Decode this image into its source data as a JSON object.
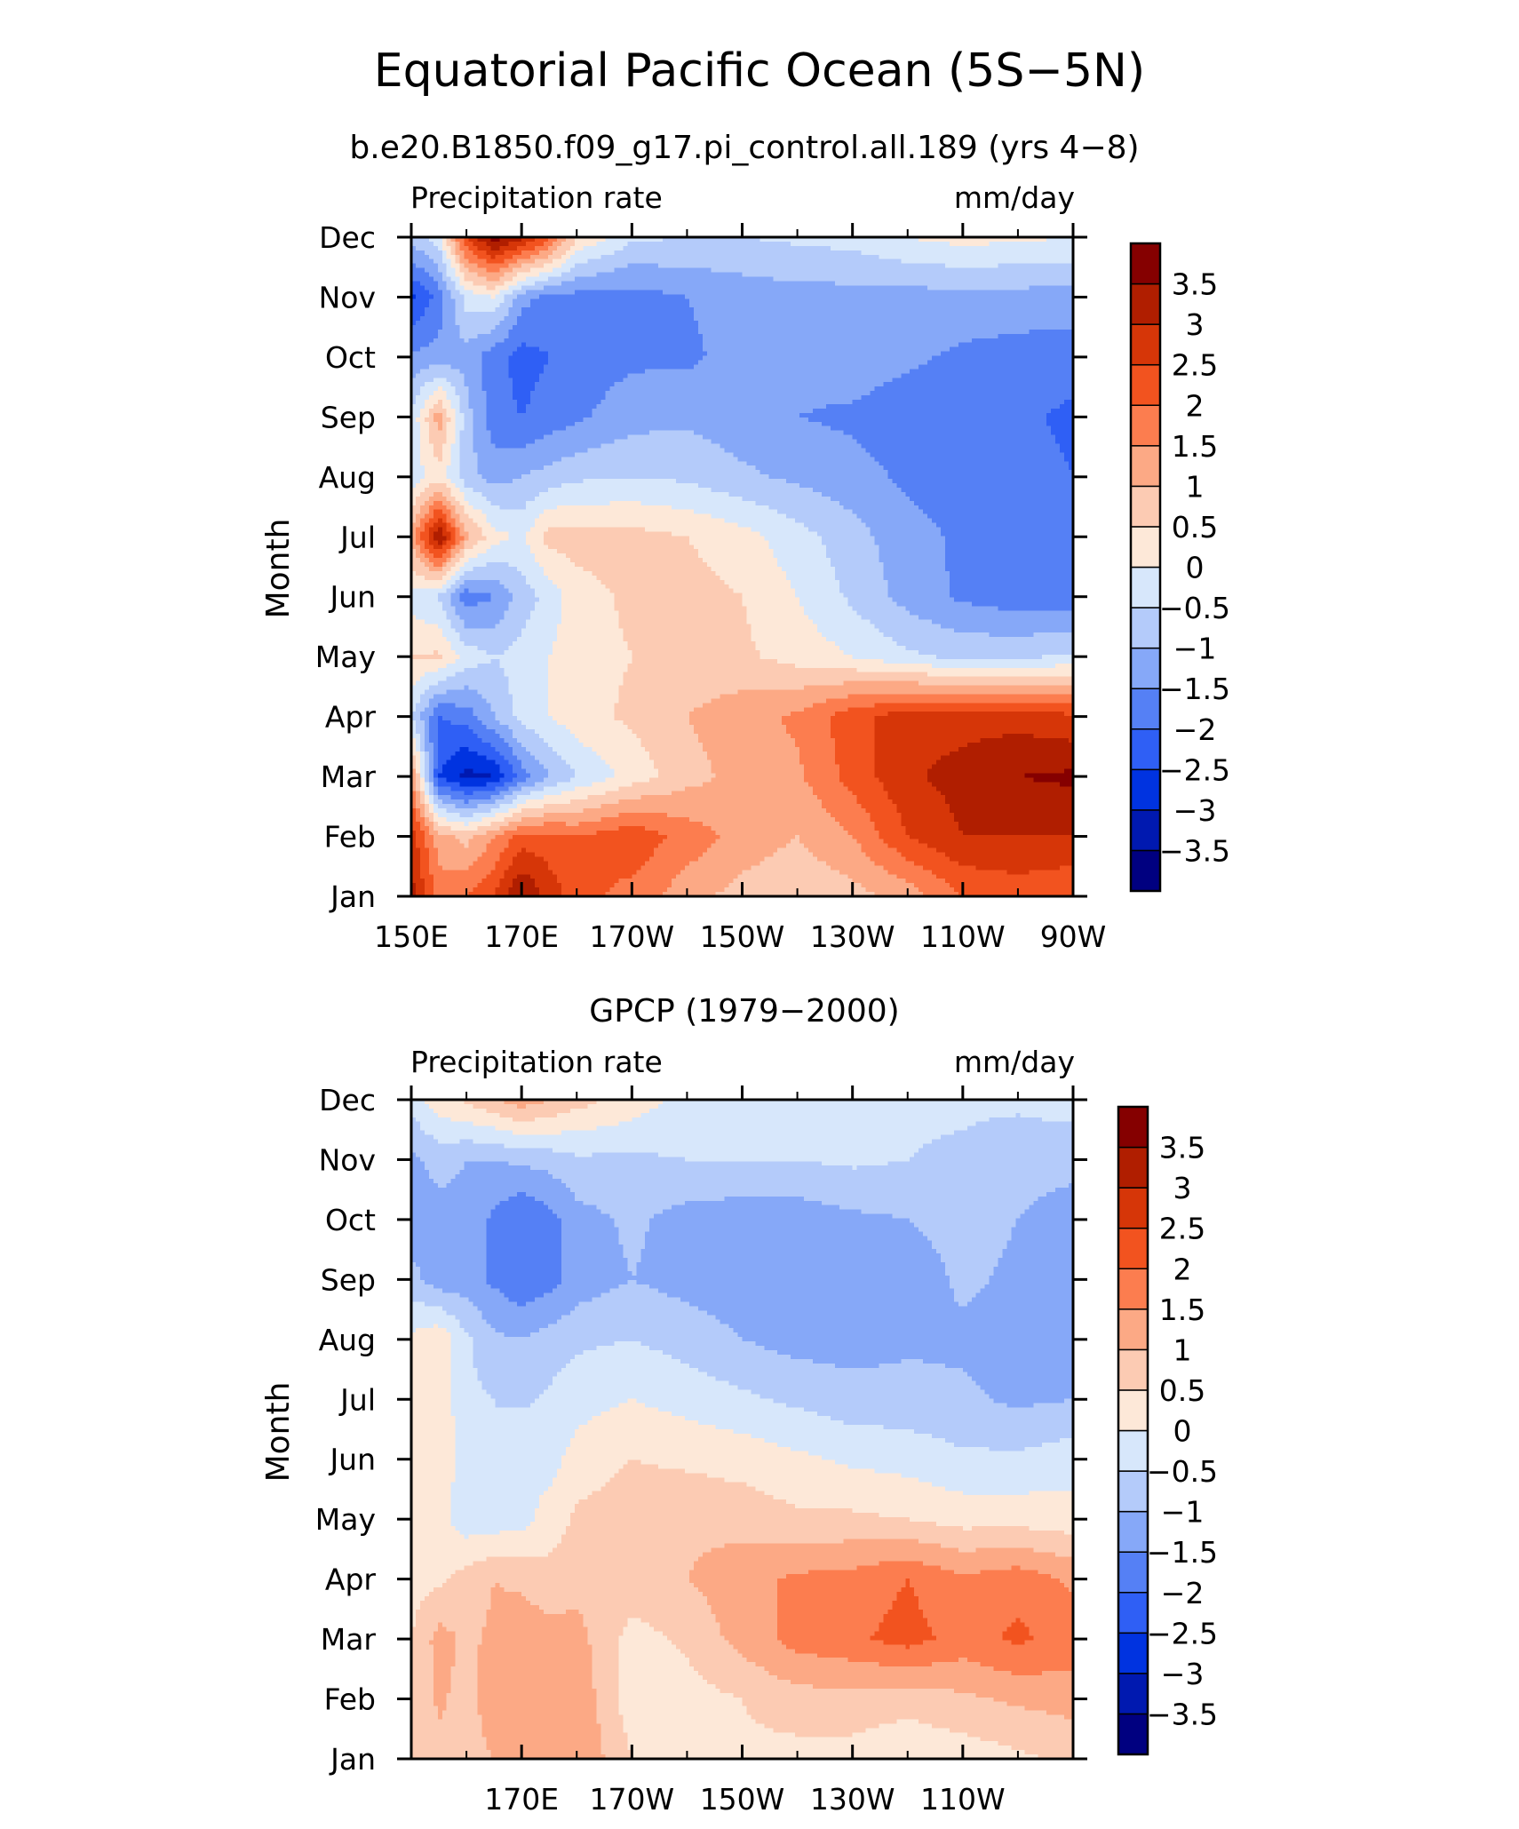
{
  "page": {
    "title": "Equatorial Pacific Ocean (5S−5N)",
    "colors": [
      "#000080",
      "#0019b0",
      "#0033e0",
      "#2f5ff5",
      "#5580f5",
      "#86a8f8",
      "#b4cbfa",
      "#d7e7fb",
      "#fde8d8",
      "#fccbb3",
      "#fca985",
      "#fc7d4f",
      "#f2531f",
      "#d63608",
      "#b01e00",
      "#850000"
    ],
    "nodata_color": "#ffffff"
  },
  "chart_data": [
    {
      "type": "heatmap",
      "title": "b.e20.B1850.f09_g17.pi_control.all.189 (yrs 4−8)",
      "left_label": "Precipitation rate",
      "right_label": "mm/day",
      "ylabel": "Month",
      "xlabel": "",
      "x_ticks": [
        "150E",
        "170E",
        "170W",
        "150W",
        "130W",
        "110W",
        "90W"
      ],
      "y_ticks": [
        "Jan",
        "Feb",
        "Mar",
        "Apr",
        "May",
        "Jun",
        "Jul",
        "Aug",
        "Sep",
        "Oct",
        "Nov",
        "Dec"
      ],
      "colorbar_labels": [
        "3.5",
        "3",
        "2.5",
        "2",
        "1.5",
        "1",
        "0.5",
        "0",
        "−0.5",
        "−1",
        "−1.5",
        "−2",
        "−2.5",
        "−3",
        "−3.5"
      ],
      "levels": [
        -3.5,
        -3,
        -2.5,
        -2,
        -1.5,
        -1,
        -0.5,
        0,
        0.5,
        1,
        1.5,
        2,
        2.5,
        3,
        3.5
      ],
      "xlim": [
        150,
        270
      ],
      "ylim": [
        1,
        12
      ],
      "x": [
        150,
        155,
        160,
        165,
        170,
        175,
        180,
        190,
        200,
        210,
        220,
        230,
        240,
        250,
        260,
        270
      ],
      "y": [
        1,
        2,
        3,
        4,
        5,
        6,
        7,
        8,
        9,
        10,
        11,
        12
      ],
      "z": [
        [
          3.2,
          1.8,
          2.0,
          2.5,
          3.6,
          2.8,
          2.2,
          1.8,
          1.2,
          0.8,
          0.6,
          0.8,
          1.2,
          2.0,
          2.2,
          2.0
        ],
        [
          2.8,
          1.2,
          0.8,
          1.5,
          2.2,
          2.2,
          2.0,
          2.4,
          1.8,
          1.3,
          1.0,
          1.5,
          2.5,
          3.0,
          3.0,
          3.0
        ],
        [
          1.5,
          -2.5,
          -3.2,
          -3.0,
          -1.8,
          -1.0,
          -0.5,
          0.2,
          0.8,
          1.2,
          1.4,
          2.2,
          2.9,
          3.2,
          3.5,
          3.6
        ],
        [
          -0.5,
          -2.0,
          -1.8,
          -1.0,
          -0.3,
          0.0,
          0.3,
          0.6,
          1.0,
          1.3,
          1.6,
          2.3,
          2.8,
          2.8,
          2.8,
          2.6
        ],
        [
          0.5,
          0.6,
          -0.2,
          -0.5,
          -0.3,
          0.0,
          0.3,
          0.5,
          0.7,
          0.6,
          0.3,
          0.0,
          -0.4,
          -0.6,
          -0.6,
          -0.4
        ],
        [
          -0.2,
          -0.6,
          -1.8,
          -1.5,
          -0.8,
          -0.3,
          0.3,
          0.6,
          0.7,
          0.5,
          0.0,
          -0.6,
          -1.2,
          -1.6,
          -1.8,
          -1.8
        ],
        [
          1.2,
          3.6,
          1.2,
          0.2,
          -0.1,
          0.7,
          0.7,
          0.7,
          0.5,
          0.2,
          -0.3,
          -0.8,
          -1.3,
          -1.6,
          -1.8,
          -1.8
        ],
        [
          -0.3,
          0.3,
          -0.8,
          -1.2,
          -1.0,
          -0.8,
          -0.6,
          -0.5,
          -0.6,
          -0.9,
          -1.1,
          -1.3,
          -1.6,
          -1.8,
          -1.8,
          -2.0
        ],
        [
          -0.4,
          1.3,
          -0.8,
          -1.8,
          -2.0,
          -1.8,
          -1.6,
          -1.2,
          -1.1,
          -1.3,
          -1.5,
          -1.6,
          -1.8,
          -1.9,
          -1.9,
          -2.1
        ],
        [
          -1.4,
          -1.3,
          -1.2,
          -1.8,
          -2.2,
          -2.0,
          -1.8,
          -1.6,
          -1.6,
          -1.3,
          -1.3,
          -1.2,
          -1.4,
          -1.6,
          -1.7,
          -1.8
        ],
        [
          -2.6,
          -1.8,
          -0.3,
          0.0,
          -1.3,
          -1.7,
          -1.7,
          -1.7,
          -1.5,
          -1.3,
          -1.2,
          -1.2,
          -1.2,
          -1.2,
          -1.2,
          -1.2
        ],
        [
          -0.8,
          -0.2,
          2.5,
          3.8,
          3.2,
          2.2,
          0.5,
          -0.4,
          -0.5,
          -0.5,
          -0.4,
          -0.3,
          0.0,
          0.2,
          0.1,
          0.0
        ]
      ]
    },
    {
      "type": "heatmap",
      "title": "GPCP (1979−2000)",
      "left_label": "Precipitation rate",
      "right_label": "mm/day",
      "ylabel": "Month",
      "xlabel": "",
      "x_ticks": [
        "170E",
        "170W",
        "150W",
        "130W",
        "110W"
      ],
      "y_ticks": [
        "Jan",
        "Feb",
        "Mar",
        "Apr",
        "May",
        "Jun",
        "Jul",
        "Aug",
        "Sep",
        "Oct",
        "Nov",
        "Dec"
      ],
      "colorbar_labels": [
        "3.5",
        "3",
        "2.5",
        "2",
        "1.5",
        "1",
        "0.5",
        "0",
        "−0.5",
        "−1",
        "−1.5",
        "−2",
        "−2.5",
        "−3",
        "−3.5"
      ],
      "levels": [
        -3.5,
        -3,
        -2.5,
        -2,
        -1.5,
        -1,
        -0.5,
        0,
        0.5,
        1,
        1.5,
        2,
        2.5,
        3,
        3.5
      ],
      "xlim": [
        150,
        270
      ],
      "ylim": [
        1,
        12
      ],
      "x": [
        150,
        155,
        160,
        165,
        170,
        175,
        180,
        190,
        200,
        210,
        220,
        230,
        240,
        250,
        260,
        270
      ],
      "y": [
        1,
        2,
        3,
        4,
        5,
        6,
        7,
        8,
        9,
        10,
        11,
        12
      ],
      "z": [
        [
          0.6,
          0.8,
          0.8,
          1.0,
          1.3,
          1.5,
          1.5,
          0.5,
          0.4,
          0.4,
          0.3,
          0.3,
          0.1,
          0.2,
          0.4,
          0.6
        ],
        [
          0.6,
          1.1,
          0.8,
          1.3,
          1.1,
          1.5,
          1.4,
          0.2,
          0.3,
          0.5,
          0.8,
          0.8,
          0.7,
          0.9,
          1.1,
          1.2
        ],
        [
          0.5,
          1.2,
          0.9,
          1.1,
          1.3,
          1.2,
          1.2,
          0.3,
          0.6,
          1.2,
          1.7,
          1.9,
          2.2,
          1.8,
          2.1,
          1.8
        ],
        [
          0.3,
          0.4,
          0.7,
          1.0,
          0.9,
          0.7,
          0.8,
          0.8,
          1.0,
          1.3,
          1.6,
          1.7,
          2.0,
          1.6,
          1.8,
          1.4
        ],
        [
          0.1,
          0.2,
          -0.3,
          -0.3,
          -0.2,
          0.2,
          0.6,
          0.8,
          0.9,
          0.8,
          0.6,
          0.6,
          0.5,
          0.3,
          0.3,
          0.2
        ],
        [
          0.2,
          0.4,
          -0.3,
          -0.5,
          0.0,
          -0.2,
          0.2,
          0.5,
          0.4,
          0.3,
          0.1,
          -0.1,
          -0.2,
          -0.4,
          -0.4,
          -0.2
        ],
        [
          0.2,
          0.4,
          -0.4,
          -0.5,
          -0.6,
          -0.4,
          -0.2,
          0.0,
          -0.2,
          -0.4,
          -0.6,
          -0.8,
          -0.8,
          -0.9,
          -1.1,
          -1.0
        ],
        [
          0.1,
          0.4,
          -0.4,
          -0.9,
          -1.0,
          -0.8,
          -0.6,
          -0.5,
          -0.7,
          -1.0,
          -1.2,
          -1.2,
          -1.1,
          -1.1,
          -1.2,
          -1.0
        ],
        [
          -0.8,
          -1.3,
          -1.3,
          -1.6,
          -1.9,
          -1.7,
          -1.3,
          -1.0,
          -1.2,
          -1.3,
          -1.3,
          -1.4,
          -1.3,
          -0.9,
          -1.1,
          -1.2
        ],
        [
          -1.4,
          -1.2,
          -1.2,
          -1.6,
          -2.0,
          -1.7,
          -1.2,
          -0.9,
          -1.2,
          -1.3,
          -1.3,
          -1.1,
          -1.0,
          -0.8,
          -1.0,
          -1.3
        ],
        [
          -1.1,
          -0.8,
          -1.0,
          -1.0,
          -0.9,
          -0.8,
          -0.6,
          -0.6,
          -0.5,
          -0.5,
          -0.5,
          -0.4,
          -0.5,
          -0.6,
          -0.8,
          -0.8
        ],
        [
          -0.3,
          0.3,
          0.6,
          0.9,
          1.3,
          1.0,
          0.7,
          0.3,
          -0.2,
          -0.3,
          -0.4,
          -0.3,
          -0.4,
          -0.4,
          -0.4,
          -0.3
        ]
      ]
    }
  ]
}
